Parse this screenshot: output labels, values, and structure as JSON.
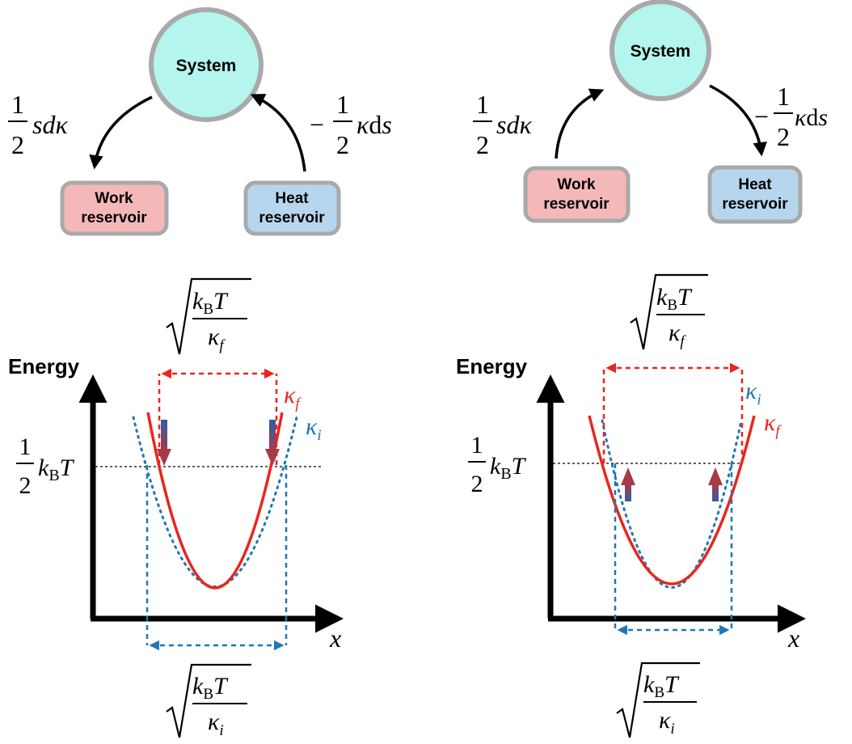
{
  "colors": {
    "system_fill": "#b4f5ee",
    "work_fill": "#f5b8b8",
    "heat_fill": "#b7d6ee",
    "box_stroke": "#a9a9a9",
    "red": "#e8261e",
    "blue": "#1f77b4",
    "arrow_grad_top": "#2e5ea8",
    "arrow_grad_bottom": "#a83a48"
  },
  "left": {
    "system_label": "System",
    "work_label_line1": "Work",
    "work_label_line2": "reservoir",
    "heat_label_line1": "Heat",
    "heat_label_line2": "reservoir",
    "work_term": {
      "num": "1",
      "den": "2",
      "expr_a": "sd",
      "expr_b": "κ"
    },
    "heat_term": {
      "sign": "−",
      "num": "1",
      "den": "2",
      "expr_a": "κ",
      "expr_b": "d",
      "expr_c": "s"
    },
    "axis_y_label": "Energy",
    "axis_x_label": "x",
    "level_label": {
      "num": "1",
      "den": "2",
      "k": "k",
      "sub": "B",
      "T": "T"
    },
    "kappa_f": {
      "k": "κ",
      "sub": "f"
    },
    "kappa_i": {
      "k": "κ",
      "sub": "i"
    },
    "top_width": {
      "k": "k",
      "sub": "B",
      "T": "T",
      "den_k": "κ",
      "den_sub": "f"
    },
    "bottom_width": {
      "k": "k",
      "sub": "B",
      "T": "T",
      "den_k": "κ",
      "den_sub": "i"
    }
  },
  "right": {
    "system_label": "System",
    "work_label_line1": "Work",
    "work_label_line2": "reservoir",
    "heat_label_line1": "Heat",
    "heat_label_line2": "reservoir",
    "work_term": {
      "num": "1",
      "den": "2",
      "expr_a": "sd",
      "expr_b": "κ"
    },
    "heat_term": {
      "sign": "−",
      "num": "1",
      "den": "2",
      "expr_a": "κ",
      "expr_b": "d",
      "expr_c": "s"
    },
    "axis_y_label": "Energy",
    "axis_x_label": "x",
    "level_label": {
      "num": "1",
      "den": "2",
      "k": "k",
      "sub": "B",
      "T": "T"
    },
    "kappa_f": {
      "k": "κ",
      "sub": "f"
    },
    "kappa_i": {
      "k": "κ",
      "sub": "i"
    },
    "top_width": {
      "k": "k",
      "sub": "B",
      "T": "T",
      "den_k": "κ",
      "den_sub": "f"
    },
    "bottom_width": {
      "k": "k",
      "sub": "B",
      "T": "T",
      "den_k": "κ",
      "den_sub": "i"
    }
  }
}
